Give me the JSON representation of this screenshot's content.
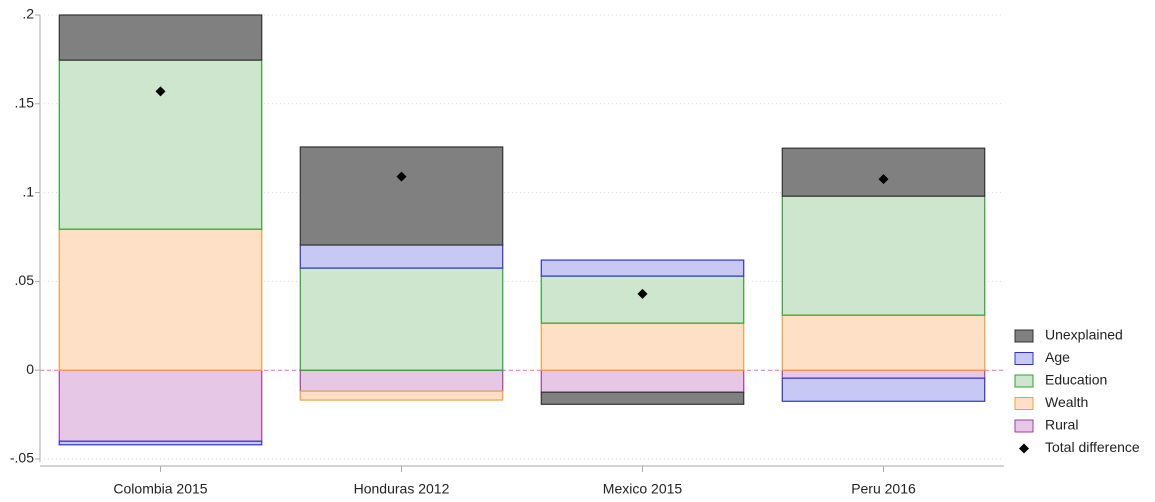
{
  "chart_data": {
    "type": "stacked-bar",
    "categories": [
      "Colombia 2015",
      "Honduras 2012",
      "Mexico 2015",
      "Peru 2016"
    ],
    "series": [
      {
        "name": "Unexplained",
        "color": "#808080",
        "stroke": "#333333",
        "values": [
          0.0254,
          0.0552,
          -0.0068,
          0.027
        ]
      },
      {
        "name": "Age",
        "color": "#c8c8f5",
        "stroke": "#3333cc",
        "values": [
          -0.002,
          0.013,
          0.009,
          -0.013
        ]
      },
      {
        "name": "Education",
        "color": "#cde6cd",
        "stroke": "#33a033",
        "values": [
          0.0952,
          0.0575,
          0.0265,
          0.067
        ]
      },
      {
        "name": "Wealth",
        "color": "#fde0c5",
        "stroke": "#f0a040",
        "values": [
          0.0794,
          -0.005,
          0.0265,
          0.031
        ]
      },
      {
        "name": "Rural",
        "color": "#e6c8e6",
        "stroke": "#a040a0",
        "values": [
          -0.04,
          -0.0118,
          -0.0124,
          -0.0045
        ]
      }
    ],
    "total": {
      "name": "Total difference",
      "color": "#000000",
      "values": [
        0.157,
        0.109,
        0.043,
        0.1076
      ]
    },
    "ylim": [
      -0.05,
      0.2
    ],
    "yticks": [
      {
        "value": -0.05,
        "label": "-.05"
      },
      0,
      {
        "value": 0.05,
        "label": ".05"
      },
      {
        "value": 0.1,
        "label": ".1"
      },
      {
        "value": 0.15,
        "label": ".15"
      },
      {
        "value": 0.2,
        "label": ".2"
      }
    ],
    "grid": true,
    "legend": "right"
  }
}
